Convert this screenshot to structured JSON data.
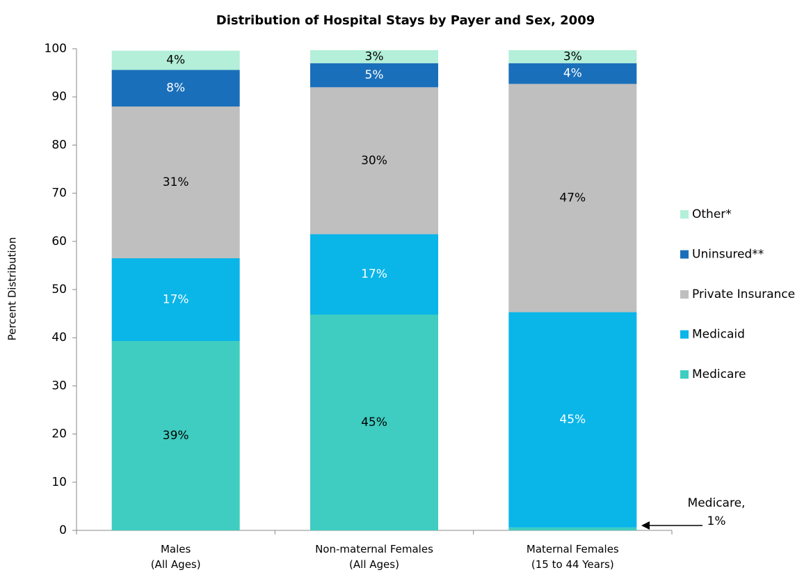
{
  "chart_data": {
    "type": "stacked_bar",
    "title": "Distribution of Hospital Stays by Payer and Sex, 2009",
    "y_label": "Percent Distribution",
    "categories": [
      "Males\n(All Ages)",
      "Non-maternal Females\n(All Ages)",
      "Maternal Females\n(15 to 44 Years)"
    ],
    "ylim": [
      0,
      100
    ],
    "yticks": [
      0,
      10,
      20,
      30,
      40,
      50,
      60,
      70,
      80,
      90,
      100
    ],
    "legend": "right",
    "series": [
      {
        "name": "Medicare",
        "color": "#3ecdc0",
        "label_color": "#000000",
        "values": [
          39.3,
          44.8,
          0.6
        ],
        "value_labels": [
          "39%",
          "45%",
          null
        ]
      },
      {
        "name": "Medicaid",
        "color": "#0ab5e8",
        "label_color": "#ffffff",
        "values": [
          17.2,
          16.7,
          44.7
        ],
        "value_labels": [
          "17%",
          "17%",
          "45%"
        ]
      },
      {
        "name": "Private Insurance",
        "color": "#bfbfbf",
        "label_color": "#000000",
        "values": [
          31.5,
          30.5,
          47.4
        ],
        "value_labels": [
          "31%",
          "30%",
          "47%"
        ]
      },
      {
        "name": "Uninsured**",
        "color": "#1a6fba",
        "label_color": "#ffffff",
        "values": [
          7.6,
          5.0,
          4.3
        ],
        "value_labels": [
          "8%",
          "5%",
          "4%"
        ]
      },
      {
        "name": "Other*",
        "color": "#b3efd9",
        "label_color": "#000000",
        "values": [
          4.0,
          2.7,
          2.7
        ],
        "value_labels": [
          "4%",
          "3%",
          "3%"
        ]
      }
    ],
    "annotation": "Medicare,\n1%"
  }
}
